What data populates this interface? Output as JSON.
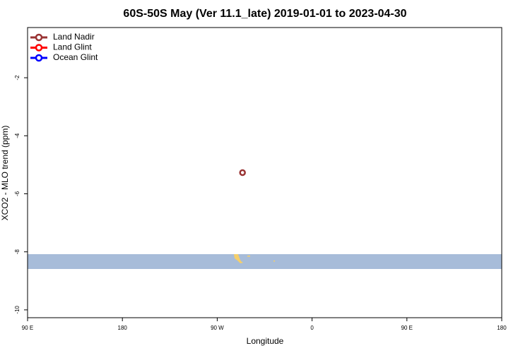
{
  "chart_data": {
    "type": "scatter",
    "title": "60S-50S May (Ver 11.1_late)   2019-01-01 to 2023-04-30",
    "xlabel": "Longitude",
    "ylabel": "XCO2 - MLO trend (ppm)",
    "xlim": [
      90,
      540
    ],
    "xticks": [
      {
        "value": 90,
        "label": "90 E"
      },
      180,
      {
        "value": 270,
        "label": "90 W"
      },
      {
        "value": 360,
        "label": "0"
      },
      {
        "value": 450,
        "label": "90 E"
      },
      {
        "value": 540,
        "label": "180"
      }
    ],
    "ylim": [
      -10.27,
      -0.27
    ],
    "yticks": [
      -2,
      -4,
      -6,
      -8,
      -10
    ],
    "legend": "top-left",
    "series": [
      {
        "name": "Land Nadir",
        "color": "#993333",
        "x": [
          294
        ],
        "values": [
          -5.27
        ]
      },
      {
        "name": "Land Glint",
        "color": "#ff0000",
        "x": [],
        "values": []
      },
      {
        "name": "Ocean Glint",
        "color": "#0000ff",
        "x": [],
        "values": []
      }
    ]
  }
}
